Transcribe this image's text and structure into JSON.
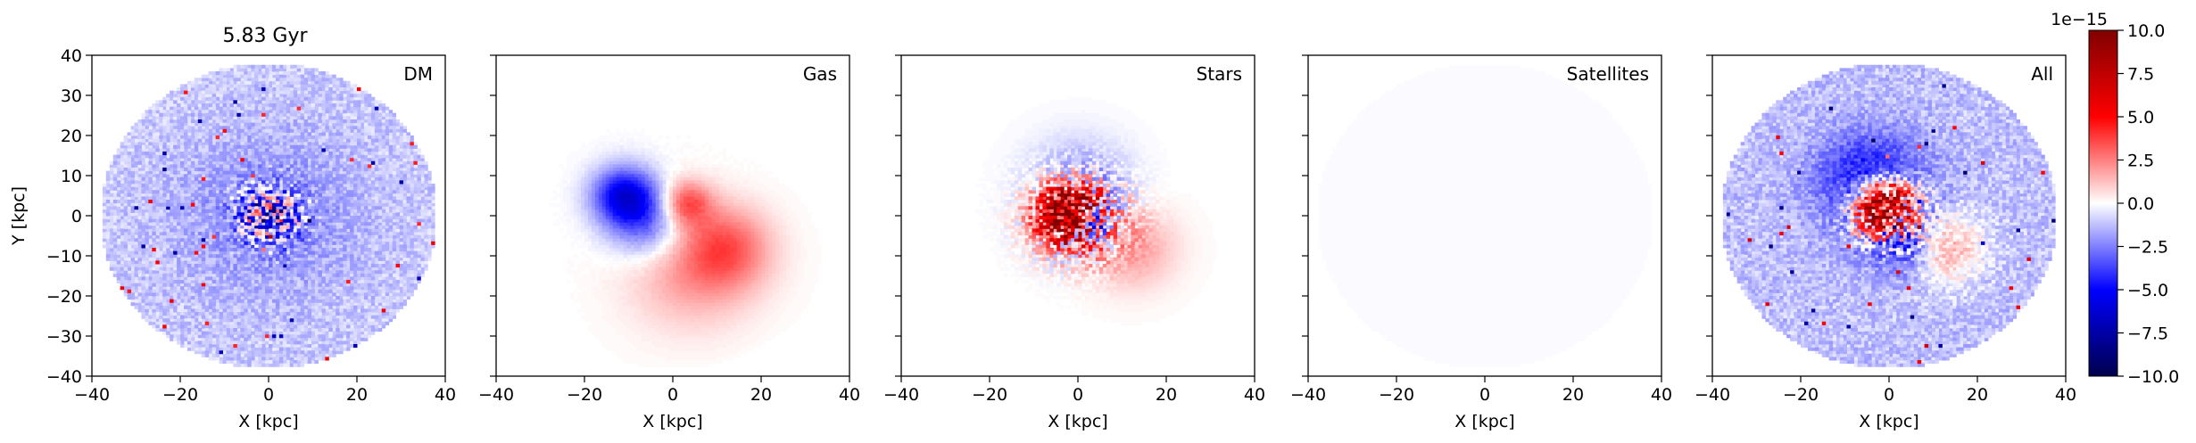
{
  "figure": {
    "title": "5.83 Gyr",
    "colorbar": {
      "offset_label": "1e−15",
      "ticks": [
        "10.0",
        "7.5",
        "5.0",
        "2.5",
        "0.0",
        "−2.5",
        "−5.0",
        "−7.5",
        "−10.0"
      ],
      "tick_values": [
        10.0,
        7.5,
        5.0,
        2.5,
        0.0,
        -2.5,
        -5.0,
        -7.5,
        -10.0
      ],
      "vmin": -10.0,
      "vmax": 10.0,
      "colormap": "seismic",
      "colors": {
        "low": "#00004d",
        "mid_low": "#0000ff",
        "zero": "#ffffff",
        "mid_high": "#ff0000",
        "high": "#800000"
      }
    }
  },
  "chart_data": {
    "type": "heatmap",
    "panels": [
      {
        "label": "DM",
        "pattern": "dm"
      },
      {
        "label": "Gas",
        "pattern": "gas"
      },
      {
        "label": "Stars",
        "pattern": "stars"
      },
      {
        "label": "Satellites",
        "pattern": "sat"
      },
      {
        "label": "All",
        "pattern": "all"
      }
    ],
    "xlabel": "X [kpc]",
    "ylabel": "Y [kpc]",
    "xlim": [
      -40,
      40
    ],
    "ylim": [
      -40,
      40
    ],
    "xticks": [
      -40,
      -20,
      0,
      20,
      40
    ],
    "xtick_labels": [
      "−40",
      "−20",
      "0",
      "20",
      "40"
    ],
    "yticks": [
      40,
      30,
      20,
      10,
      0,
      -10,
      -20,
      -30,
      -40
    ],
    "ytick_labels": [
      "40",
      "30",
      "20",
      "10",
      "0",
      "−10",
      "−20",
      "−30",
      "−40"
    ],
    "map_radius_kpc": 38,
    "grid": false
  }
}
